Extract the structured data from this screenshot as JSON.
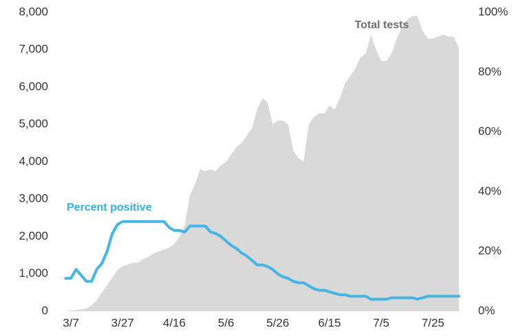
{
  "chart_data": {
    "type": "area-line",
    "x": [
      "3/5",
      "3/7",
      "3/9",
      "3/11",
      "3/13",
      "3/15",
      "3/17",
      "3/19",
      "3/21",
      "3/23",
      "3/25",
      "3/27",
      "3/29",
      "3/31",
      "4/2",
      "4/4",
      "4/6",
      "4/8",
      "4/10",
      "4/12",
      "4/14",
      "4/16",
      "4/18",
      "4/20",
      "4/22",
      "4/24",
      "4/26",
      "4/28",
      "4/30",
      "5/2",
      "5/4",
      "5/6",
      "5/8",
      "5/10",
      "5/12",
      "5/14",
      "5/16",
      "5/18",
      "5/20",
      "5/22",
      "5/24",
      "5/26",
      "5/28",
      "5/30",
      "6/1",
      "6/3",
      "6/5",
      "6/7",
      "6/9",
      "6/11",
      "6/13",
      "6/15",
      "6/17",
      "6/19",
      "6/21",
      "6/23",
      "6/25",
      "6/27",
      "6/29",
      "7/1",
      "7/3",
      "7/5",
      "7/7",
      "7/9",
      "7/11",
      "7/13",
      "7/15",
      "7/17",
      "7/19",
      "7/21",
      "7/23",
      "7/25",
      "7/27",
      "7/29",
      "7/31",
      "8/2",
      "8/4"
    ],
    "xticks": [
      "3/7",
      "3/27",
      "4/16",
      "5/6",
      "5/26",
      "6/15",
      "7/5",
      "7/25"
    ],
    "series": [
      {
        "name": "Total tests",
        "color": "#d9d9d9",
        "label_color": "#6e6e6e",
        "kind": "area",
        "values": [
          0,
          20,
          30,
          50,
          80,
          150,
          300,
          500,
          700,
          900,
          1100,
          1200,
          1250,
          1300,
          1300,
          1400,
          1450,
          1550,
          1600,
          1650,
          1700,
          1800,
          2000,
          2300,
          3100,
          3400,
          3800,
          3750,
          3800,
          3750,
          3900,
          4000,
          4200,
          4400,
          4500,
          4700,
          4900,
          5400,
          5700,
          5600,
          5000,
          5100,
          5100,
          5000,
          4300,
          4100,
          4000,
          5000,
          5200,
          5300,
          5300,
          5500,
          5400,
          5700,
          6100,
          6300,
          6500,
          6800,
          6900,
          7400,
          7000,
          6700,
          6700,
          6900,
          7300,
          7600,
          7800,
          7900,
          7900,
          7500,
          7300,
          7300,
          7350,
          7400,
          7350,
          7350,
          7050
        ]
      },
      {
        "name": "Percent positive",
        "color": "#45b5e6",
        "label_color": "#2fb1ea",
        "kind": "line",
        "axis": "y2",
        "values": [
          11,
          11,
          14,
          12,
          10,
          10,
          14,
          16,
          20,
          26,
          29,
          30,
          30,
          30,
          30,
          30,
          30,
          30,
          30,
          30,
          28,
          27,
          27,
          26.5,
          28.5,
          28.5,
          28.5,
          28.5,
          26.5,
          26,
          25,
          23.5,
          22,
          21,
          19.5,
          18.5,
          17,
          15.5,
          15.5,
          15,
          14,
          12.5,
          11.5,
          11,
          10,
          9.5,
          9.5,
          8.5,
          7.5,
          7,
          7,
          6.5,
          6,
          5.5,
          5.5,
          5,
          5,
          5,
          5,
          4,
          4,
          4,
          4,
          4.5,
          4.5,
          4.5,
          4.5,
          4.5,
          4,
          4.5,
          5,
          5,
          5,
          5,
          5,
          5,
          5
        ]
      }
    ],
    "ylim": [
      0,
      8000
    ],
    "yticks": [
      0,
      {
        "value": 1000,
        "label": "1,000"
      },
      {
        "value": 2000,
        "label": "2,000"
      },
      {
        "value": 3000,
        "label": "3,000"
      },
      {
        "value": 4000,
        "label": "4,000"
      },
      {
        "value": 5000,
        "label": "5,000"
      },
      {
        "value": 6000,
        "label": "6,000"
      },
      {
        "value": 7000,
        "label": "7,000"
      },
      {
        "value": 8000,
        "label": "8,000"
      }
    ],
    "y2lim": [
      0,
      100
    ],
    "y2ticks": [
      {
        "value": 0,
        "label": "0%"
      },
      {
        "value": 20,
        "label": "20%"
      },
      {
        "value": 40,
        "label": "40%"
      },
      {
        "value": 60,
        "label": "60%"
      },
      {
        "value": 80,
        "label": "80%"
      },
      {
        "value": 100,
        "label": "100%"
      }
    ],
    "grid": false
  }
}
